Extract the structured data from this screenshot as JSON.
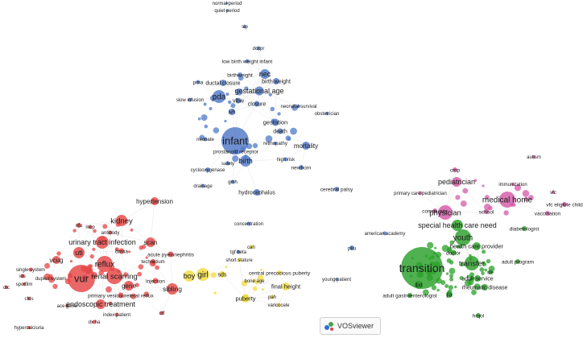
{
  "app": {
    "brand": "VOSviewer"
  },
  "colors": {
    "blue": "#4f79c8",
    "red": "#e64545",
    "green": "#2aa02a",
    "pink": "#d45aa8",
    "yellow": "#f2dc3c",
    "link": "#d6d6d6"
  },
  "nodes": [
    {
      "label": "normal period",
      "cluster": "blue"
    },
    {
      "label": "quiet period",
      "cluster": "blue"
    },
    {
      "label": "sip",
      "cluster": "blue"
    },
    {
      "label": "dccpr",
      "cluster": "blue"
    },
    {
      "label": "low birth weight infant",
      "cluster": "blue"
    },
    {
      "label": "nec",
      "cluster": "blue"
    },
    {
      "label": "birth weight",
      "cluster": "blue"
    },
    {
      "label": "birthweight",
      "cluster": "blue"
    },
    {
      "label": "pma",
      "cluster": "blue"
    },
    {
      "label": "ductal closure",
      "cluster": "blue"
    },
    {
      "label": "pda",
      "cluster": "blue"
    },
    {
      "label": "gestational age",
      "cluster": "blue"
    },
    {
      "label": "slow infusion",
      "cluster": "blue"
    },
    {
      "label": "vlbw",
      "cluster": "blue"
    },
    {
      "label": "closure",
      "cluster": "blue"
    },
    {
      "label": "neonatal survival",
      "cluster": "blue"
    },
    {
      "label": "obstetrician",
      "cluster": "blue"
    },
    {
      "label": "ivh",
      "cluster": "blue"
    },
    {
      "label": "gestation",
      "cluster": "blue"
    },
    {
      "label": "death",
      "cluster": "blue"
    },
    {
      "label": "infant",
      "cluster": "blue"
    },
    {
      "label": "neonate",
      "cluster": "blue"
    },
    {
      "label": "retinopathy",
      "cluster": "blue"
    },
    {
      "label": "mortality",
      "cluster": "blue"
    },
    {
      "label": "prostanoid receptor",
      "cluster": "blue"
    },
    {
      "label": "birth",
      "cluster": "blue"
    },
    {
      "label": "high risk",
      "cluster": "blue"
    },
    {
      "label": "safety",
      "cluster": "blue"
    },
    {
      "label": "newborn",
      "cluster": "blue"
    },
    {
      "label": "cyclooxygenase",
      "cluster": "blue"
    },
    {
      "label": "drainage",
      "cluster": "blue"
    },
    {
      "label": "gmh",
      "cluster": "blue"
    },
    {
      "label": "hydrocephalus",
      "cluster": "blue"
    },
    {
      "label": "cerebral palsy",
      "cluster": "blue"
    },
    {
      "label": "concentration",
      "cluster": "blue"
    },
    {
      "label": "tgf beta",
      "cluster": "blue"
    },
    {
      "label": "pku",
      "cluster": "blue"
    },
    {
      "label": "american academy",
      "cluster": "blue"
    },
    {
      "label": "young patient",
      "cluster": "blue"
    },
    {
      "label": "hypertension",
      "cluster": "red"
    },
    {
      "label": "kidney",
      "cluster": "red"
    },
    {
      "label": "nfu",
      "cluster": "red"
    },
    {
      "label": "mcp",
      "cluster": "red"
    },
    {
      "label": "antibody",
      "cluster": "red"
    },
    {
      "label": "urinary tract infection",
      "cluster": "red"
    },
    {
      "label": "scan",
      "cluster": "red"
    },
    {
      "label": "uti",
      "cluster": "red"
    },
    {
      "label": "dmsa",
      "cluster": "red"
    },
    {
      "label": "vcug",
      "cluster": "red"
    },
    {
      "label": "acute pyelonephritis",
      "cluster": "red"
    },
    {
      "label": "technetium",
      "cluster": "red"
    },
    {
      "label": "reflux",
      "cluster": "red"
    },
    {
      "label": "single system",
      "cluster": "red"
    },
    {
      "label": "ids",
      "cluster": "red"
    },
    {
      "label": "vur",
      "cluster": "red"
    },
    {
      "label": "renal scarring",
      "cluster": "red"
    },
    {
      "label": "duplex system",
      "cluster": "red"
    },
    {
      "label": "injection",
      "cluster": "red"
    },
    {
      "label": "spotfilm",
      "cluster": "red"
    },
    {
      "label": "gene",
      "cluster": "red"
    },
    {
      "label": "dtc",
      "cluster": "red"
    },
    {
      "label": "sibling",
      "cluster": "red"
    },
    {
      "label": "primary vesicoureteral reflux",
      "cluster": "red"
    },
    {
      "label": "cfds",
      "cluster": "red"
    },
    {
      "label": "endoscopic treatment",
      "cluster": "red"
    },
    {
      "label": "ace gene",
      "cluster": "red"
    },
    {
      "label": "index patient",
      "cluster": "red"
    },
    {
      "label": "crf",
      "cluster": "red"
    },
    {
      "label": "dx ha",
      "cluster": "red"
    },
    {
      "label": "hypercalciuria",
      "cluster": "red"
    },
    {
      "label": "cah",
      "cluster": "yellow"
    },
    {
      "label": "short stature",
      "cluster": "yellow"
    },
    {
      "label": "boy",
      "cluster": "yellow"
    },
    {
      "label": "girl",
      "cluster": "yellow"
    },
    {
      "label": "sds",
      "cluster": "yellow"
    },
    {
      "label": "central precocious puberty",
      "cluster": "yellow"
    },
    {
      "label": "bone age",
      "cluster": "yellow"
    },
    {
      "label": "final height",
      "cluster": "yellow"
    },
    {
      "label": "puberty",
      "cluster": "yellow"
    },
    {
      "label": "pah",
      "cluster": "yellow"
    },
    {
      "label": "varicocele",
      "cluster": "yellow"
    },
    {
      "label": "autism",
      "cluster": "pink"
    },
    {
      "label": "cmp",
      "cluster": "pink"
    },
    {
      "label": "pediatrician",
      "cluster": "pink"
    },
    {
      "label": "immunization",
      "cluster": "pink"
    },
    {
      "label": "vfc",
      "cluster": "pink"
    },
    {
      "label": "primary care pediatrician",
      "cluster": "pink"
    },
    {
      "label": "medical home",
      "cluster": "pink"
    },
    {
      "label": "vfc eligible child",
      "cluster": "pink"
    },
    {
      "label": "community",
      "cluster": "pink"
    },
    {
      "label": "physician",
      "cluster": "pink"
    },
    {
      "label": "school",
      "cluster": "pink"
    },
    {
      "label": "vaccination",
      "cluster": "pink"
    },
    {
      "label": "special health care need",
      "cluster": "green"
    },
    {
      "label": "diabetologist",
      "cluster": "green"
    },
    {
      "label": "youth",
      "cluster": "green"
    },
    {
      "label": "health care provider",
      "cluster": "green"
    },
    {
      "label": "doctor",
      "cluster": "green"
    },
    {
      "label": "adult program",
      "cluster": "green"
    },
    {
      "label": "transition",
      "cluster": "green"
    },
    {
      "label": "transfer",
      "cluster": "green"
    },
    {
      "label": "adult service",
      "cluster": "green"
    },
    {
      "label": "sle",
      "cluster": "green"
    },
    {
      "label": "rheumatic disease",
      "cluster": "green"
    },
    {
      "label": "ibd",
      "cluster": "green"
    },
    {
      "label": "adult gastroenterologist",
      "cluster": "green"
    },
    {
      "label": "jia",
      "cluster": "green"
    },
    {
      "label": "hrqol",
      "cluster": "green"
    }
  ]
}
